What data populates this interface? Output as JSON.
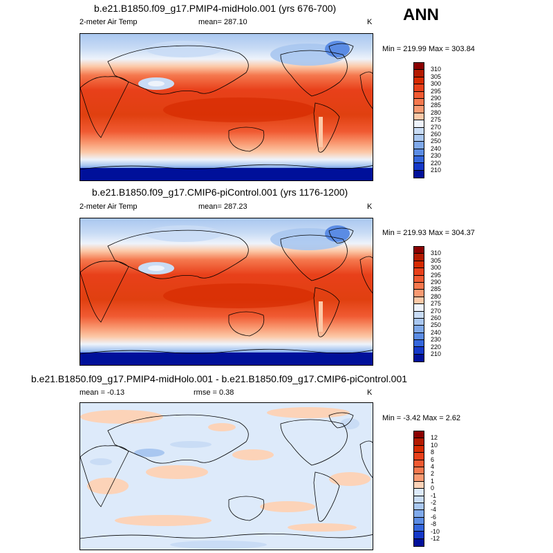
{
  "season": "ANN",
  "panels": [
    {
      "title": "b.e21.B1850.f09_g17.PMIP4-midHolo.001 (yrs 676-700)",
      "variable": "2-meter Air Temp",
      "stat": "mean= 287.10",
      "units": "K",
      "minmax": "Min = 219.99 Max = 303.84",
      "colorbar_labels": [
        "310",
        "305",
        "300",
        "295",
        "290",
        "285",
        "280",
        "275",
        "270",
        "260",
        "250",
        "240",
        "230",
        "220",
        "210"
      ],
      "colorbar_colors": [
        "#8b0000",
        "#b31a00",
        "#d62a00",
        "#e8401a",
        "#f05a32",
        "#f5784e",
        "#f99a72",
        "#fcc9a8",
        "#eef3fb",
        "#c9dcf5",
        "#a9c7f0",
        "#7fa9ea",
        "#5b8ce4",
        "#3466dc",
        "#1438c8",
        "#00109a"
      ]
    },
    {
      "title": "b.e21.B1850.f09_g17.CMIP6-piControl.001 (yrs 1176-1200)",
      "variable": "2-meter Air Temp",
      "stat": "mean= 287.23",
      "units": "K",
      "minmax": "Min = 219.93 Max = 304.37",
      "colorbar_labels": [
        "310",
        "305",
        "300",
        "295",
        "290",
        "285",
        "280",
        "275",
        "270",
        "260",
        "250",
        "240",
        "230",
        "220",
        "210"
      ],
      "colorbar_colors": [
        "#8b0000",
        "#b31a00",
        "#d62a00",
        "#e8401a",
        "#f05a32",
        "#f5784e",
        "#f99a72",
        "#fcc9a8",
        "#eef3fb",
        "#c9dcf5",
        "#a9c7f0",
        "#7fa9ea",
        "#5b8ce4",
        "#3466dc",
        "#1438c8",
        "#00109a"
      ]
    },
    {
      "title": "b.e21.B1850.f09_g17.PMIP4-midHolo.001 - b.e21.B1850.f09_g17.CMIP6-piControl.001",
      "stat": "mean =  -0.13",
      "stat2": "rmse =   0.38",
      "units": "K",
      "minmax": "Min =  -3.42 Max =   2.62",
      "colorbar_labels": [
        "12",
        "10",
        "8",
        "6",
        "4",
        "2",
        "1",
        "0",
        "-1",
        "-2",
        "-4",
        "-6",
        "-8",
        "-10",
        "-12"
      ],
      "colorbar_colors": [
        "#8b0000",
        "#b31a00",
        "#d62a00",
        "#e8401a",
        "#f05a32",
        "#f5784e",
        "#f99a72",
        "#fcd3b8",
        "#ddeafa",
        "#c9dcf5",
        "#a9c7f0",
        "#7fa9ea",
        "#5b8ce4",
        "#3466dc",
        "#1438c8",
        "#00109a"
      ]
    }
  ]
}
